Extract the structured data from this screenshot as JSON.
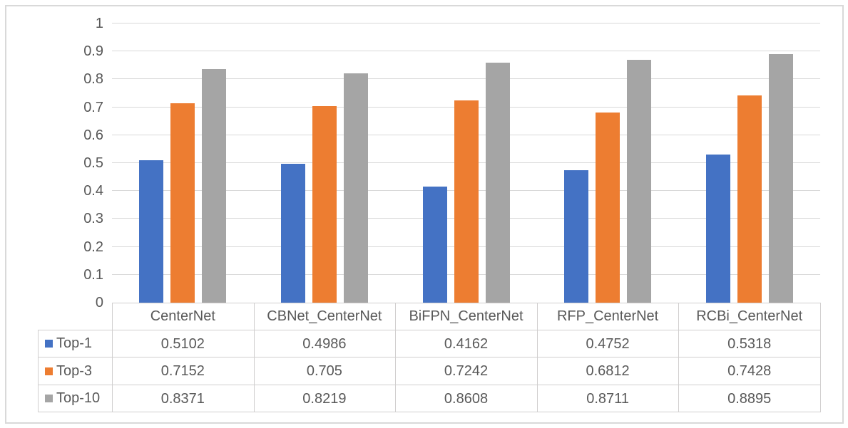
{
  "chart_data": {
    "type": "bar",
    "title": "",
    "xlabel": "",
    "ylabel": "",
    "ylim": [
      0,
      1
    ],
    "grid": true,
    "legend_position": "data-table-left",
    "y_ticks": [
      "1",
      "0.9",
      "0.8",
      "0.7",
      "0.6",
      "0.5",
      "0.4",
      "0.3",
      "0.2",
      "0.1",
      "0"
    ],
    "categories": [
      "CenterNet",
      "CBNet_CenterNet",
      "BiFPN_CenterNet",
      "RFP_CenterNet",
      "RCBi_CenterNet"
    ],
    "series": [
      {
        "name": "Top-1",
        "color": "#4472C4",
        "values": [
          0.5102,
          0.4986,
          0.4162,
          0.4752,
          0.5318
        ]
      },
      {
        "name": "Top-3",
        "color": "#ED7D31",
        "values": [
          0.7152,
          0.705,
          0.7242,
          0.6812,
          0.7428
        ]
      },
      {
        "name": "Top-10",
        "color": "#A5A5A5",
        "values": [
          0.8371,
          0.8219,
          0.8608,
          0.8711,
          0.8895
        ]
      }
    ]
  },
  "colors": {
    "gridline": "#D9D9D9",
    "frame_border": "#D9D9D9",
    "table_border": "#D0CECE",
    "text": "#595959",
    "background": "#FFFFFF"
  }
}
